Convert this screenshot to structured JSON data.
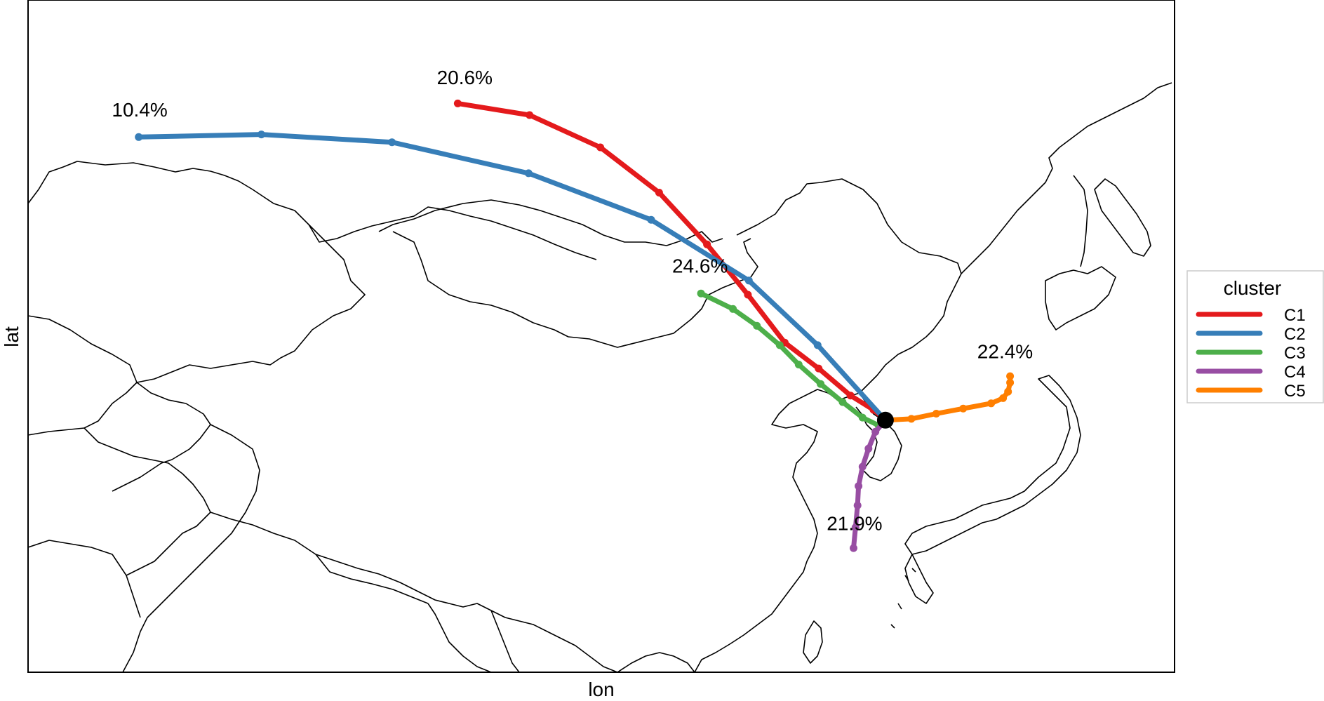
{
  "axes": {
    "xlabel": "lon",
    "ylabel": "lat"
  },
  "legend": {
    "title": "cluster",
    "placement": "right",
    "items": [
      {
        "label": "C1",
        "color": "#E41A1C"
      },
      {
        "label": "C2",
        "color": "#377EB8"
      },
      {
        "label": "C3",
        "color": "#4DAF4A"
      },
      {
        "label": "C4",
        "color": "#984EA3"
      },
      {
        "label": "C5",
        "color": "#FF7F00"
      }
    ]
  },
  "chart_data": {
    "type": "map-trajectories",
    "lon_range": [
      40,
      155
    ],
    "lat_range": [
      18,
      70
    ],
    "grid": false,
    "origin": {
      "lon": 126.0,
      "lat": 37.5
    },
    "series": [
      {
        "name": "C1",
        "color": "#E41A1C",
        "percent_label": "20.6%",
        "points": [
          [
            83.1,
            62.0
          ],
          [
            90.3,
            61.1
          ],
          [
            97.4,
            58.6
          ],
          [
            103.3,
            55.1
          ],
          [
            108.1,
            51.1
          ],
          [
            112.2,
            47.2
          ],
          [
            115.9,
            43.5
          ],
          [
            119.3,
            41.5
          ],
          [
            122.5,
            39.4
          ],
          [
            124.8,
            38.3
          ],
          [
            126.0,
            37.5
          ]
        ]
      },
      {
        "name": "C2",
        "color": "#377EB8",
        "percent_label": "10.4%",
        "points": [
          [
            51.1,
            59.4
          ],
          [
            63.4,
            59.6
          ],
          [
            76.5,
            59.0
          ],
          [
            90.2,
            56.6
          ],
          [
            102.5,
            53.0
          ],
          [
            112.3,
            48.3
          ],
          [
            119.2,
            43.3
          ],
          [
            126.0,
            37.5
          ]
        ]
      },
      {
        "name": "C3",
        "color": "#4DAF4A",
        "percent_label": "24.6%",
        "points": [
          [
            107.5,
            47.3
          ],
          [
            110.7,
            46.1
          ],
          [
            113.1,
            44.8
          ],
          [
            115.4,
            43.3
          ],
          [
            117.3,
            41.8
          ],
          [
            119.5,
            40.3
          ],
          [
            121.7,
            38.9
          ],
          [
            123.7,
            37.7
          ],
          [
            125.3,
            37.1
          ],
          [
            126.0,
            37.5
          ]
        ]
      },
      {
        "name": "C4",
        "color": "#984EA3",
        "percent_label": "21.9%",
        "points": [
          [
            126.0,
            37.5
          ],
          [
            125.0,
            36.6
          ],
          [
            124.3,
            35.3
          ],
          [
            123.7,
            33.9
          ],
          [
            123.3,
            32.4
          ],
          [
            123.2,
            30.9
          ],
          [
            123.0,
            29.2
          ],
          [
            122.8,
            27.6
          ]
        ]
      },
      {
        "name": "C5",
        "color": "#FF7F00",
        "percent_label": "22.4%",
        "points": [
          [
            126.0,
            37.5
          ],
          [
            128.6,
            37.6
          ],
          [
            131.1,
            38.0
          ],
          [
            133.8,
            38.4
          ],
          [
            136.6,
            38.8
          ],
          [
            137.8,
            39.2
          ],
          [
            138.3,
            39.7
          ],
          [
            138.5,
            40.4
          ],
          [
            138.5,
            40.9
          ]
        ]
      }
    ],
    "label_positions": {
      "C1": [
        83.8,
        63.5
      ],
      "C2": [
        51.2,
        61.0
      ],
      "C3": [
        107.4,
        48.9
      ],
      "C4": [
        122.9,
        29.0
      ],
      "C5": [
        138.0,
        42.3
      ]
    }
  }
}
